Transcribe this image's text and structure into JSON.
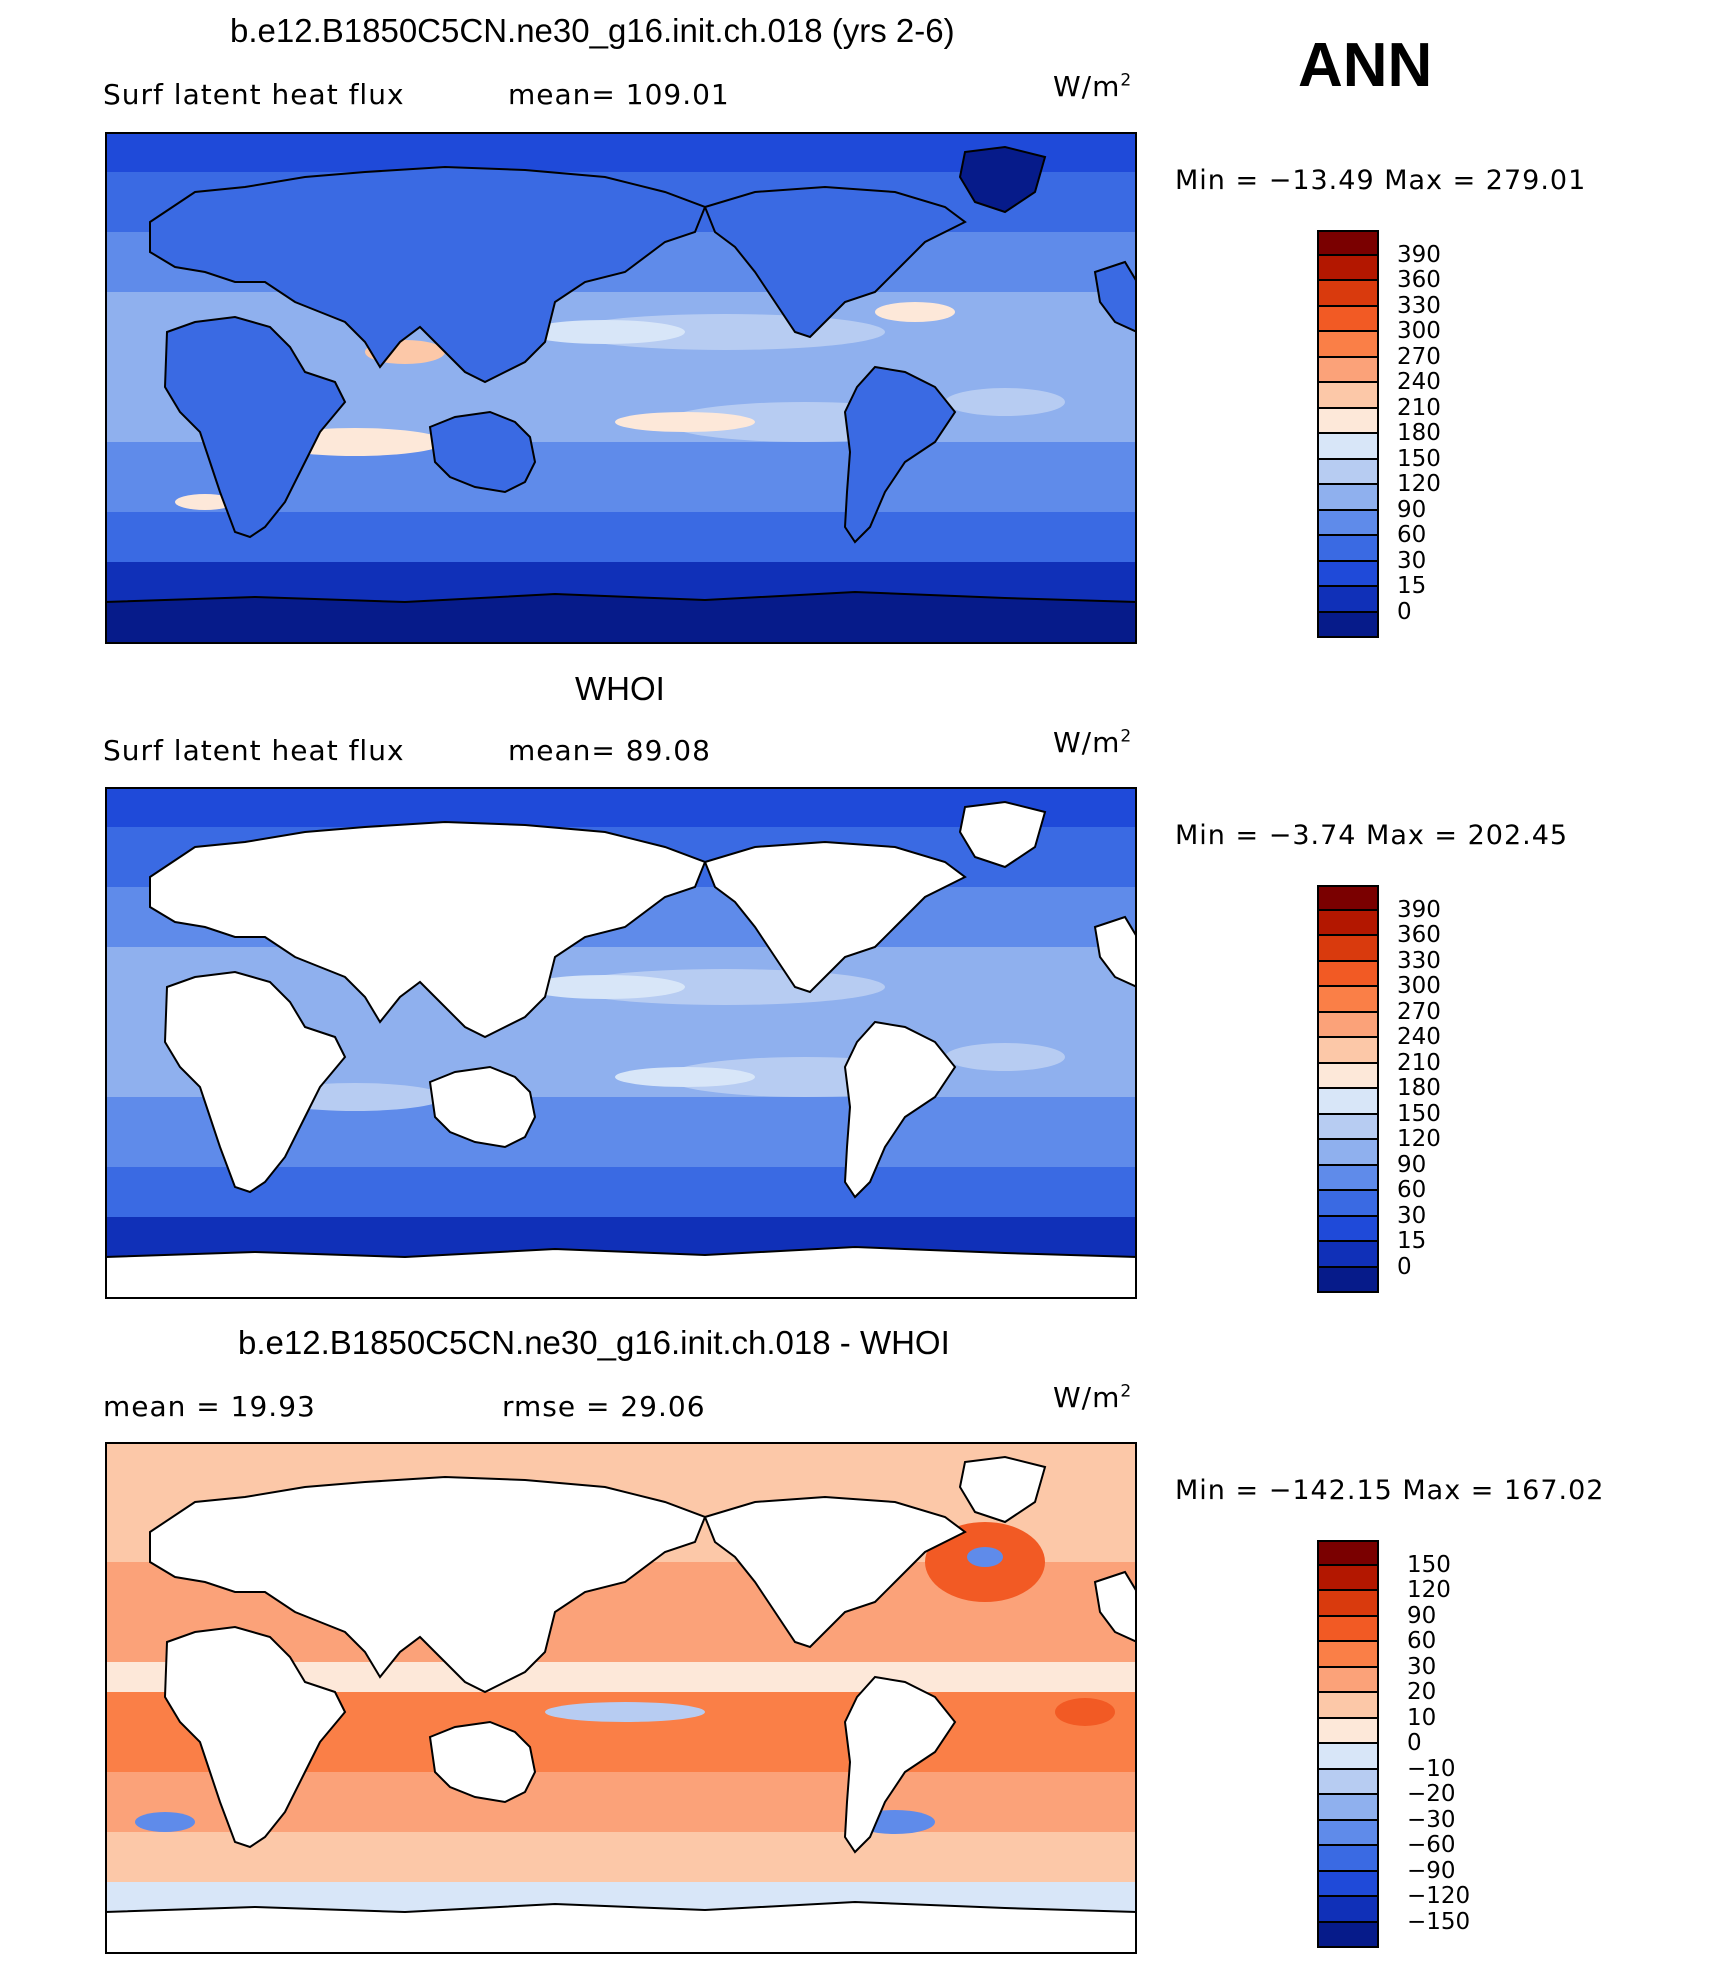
{
  "season_label": "ANN",
  "panels": [
    {
      "id": "model",
      "title": "b.e12.B1850C5CN.ne30_g16.init.ch.018 (yrs 2-6)",
      "left_text": "Surf latent heat flux",
      "mid_text": "mean=  109.01",
      "units_base": "W/m",
      "units_sup": "2",
      "minmax": "Min  =  −13.49  Max  =  279.01",
      "variant": "model",
      "colorbar": {
        "colors": [
          "#7a0000",
          "#b31700",
          "#d93a0d",
          "#f25a24",
          "#fa7f47",
          "#fba279",
          "#fcc8a8",
          "#fde8d9",
          "#d8e6f8",
          "#b7ccf2",
          "#8fb0ee",
          "#5f8bea",
          "#3a6ae3",
          "#1f4ad9",
          "#1030b8",
          "#061b8a"
        ],
        "labels": [
          "390",
          "360",
          "330",
          "300",
          "270",
          "240",
          "210",
          "180",
          "150",
          "120",
          "90",
          "60",
          "30",
          "15",
          "0"
        ]
      }
    },
    {
      "id": "obs",
      "title": "WHOI",
      "left_text": "Surf latent heat flux",
      "mid_text": "mean=   89.08",
      "units_base": "W/m",
      "units_sup": "2",
      "minmax": "Min  =   −3.74  Max  =  202.45",
      "variant": "obs",
      "colorbar": {
        "colors": [
          "#7a0000",
          "#b31700",
          "#d93a0d",
          "#f25a24",
          "#fa7f47",
          "#fba279",
          "#fcc8a8",
          "#fde8d9",
          "#d8e6f8",
          "#b7ccf2",
          "#8fb0ee",
          "#5f8bea",
          "#3a6ae3",
          "#1f4ad9",
          "#1030b8",
          "#061b8a"
        ],
        "labels": [
          "390",
          "360",
          "330",
          "300",
          "270",
          "240",
          "210",
          "180",
          "150",
          "120",
          "90",
          "60",
          "30",
          "15",
          "0"
        ]
      }
    },
    {
      "id": "diff",
      "title": "b.e12.B1850C5CN.ne30_g16.init.ch.018 - WHOI",
      "left_text": "mean  =     19.93",
      "mid_text": "rmse  =    29.06",
      "units_base": "W/m",
      "units_sup": "2",
      "minmax": "Min  =  −142.15  Max  =  167.02",
      "variant": "diff",
      "colorbar": {
        "colors": [
          "#7a0000",
          "#b31700",
          "#d93a0d",
          "#f25a24",
          "#fa7f47",
          "#fba279",
          "#fcc8a8",
          "#fde8d9",
          "#d8e6f8",
          "#b7ccf2",
          "#8fb0ee",
          "#5f8bea",
          "#3a6ae3",
          "#1f4ad9",
          "#1030b8",
          "#061b8a"
        ],
        "labels": [
          "150",
          "120",
          "90",
          "60",
          "30",
          "20",
          "10",
          "0",
          "−10",
          "−20",
          "−30",
          "−60",
          "−90",
          "−120",
          "−150"
        ]
      }
    }
  ]
}
